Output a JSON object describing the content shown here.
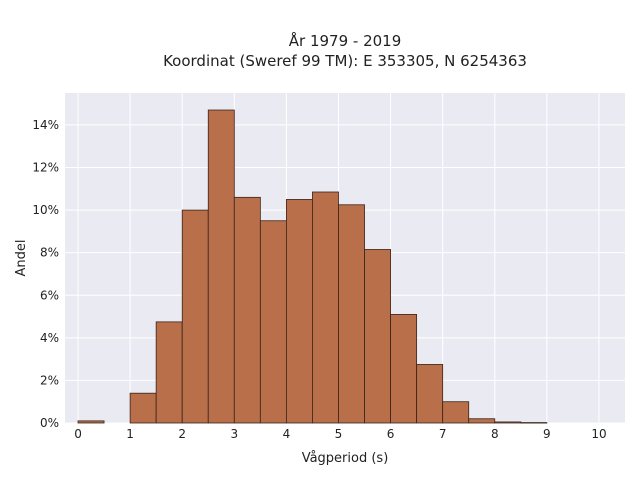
{
  "chart_data": {
    "type": "bar",
    "title_lines": [
      "År 1979 - 2019",
      "Koordinat (Sweref 99 TM): E 353305, N 6254363"
    ],
    "xlabel": "Vågperiod (s)",
    "ylabel": "Andel",
    "xlim": [
      -0.25,
      10.5
    ],
    "ylim": [
      0,
      15.5
    ],
    "x_ticks": [
      0,
      1,
      2,
      3,
      4,
      5,
      6,
      7,
      8,
      9,
      10
    ],
    "y_ticks": [
      0,
      2,
      4,
      6,
      8,
      10,
      12,
      14
    ],
    "y_tick_labels": [
      "0%",
      "2%",
      "4%",
      "6%",
      "8%",
      "10%",
      "12%",
      "14%"
    ],
    "bin_width": 0.5,
    "bins": [
      {
        "x_start": 0.0,
        "value": 0.1
      },
      {
        "x_start": 0.5,
        "value": 0.0
      },
      {
        "x_start": 1.0,
        "value": 1.4
      },
      {
        "x_start": 1.5,
        "value": 4.75
      },
      {
        "x_start": 2.0,
        "value": 10.0
      },
      {
        "x_start": 2.5,
        "value": 14.7
      },
      {
        "x_start": 3.0,
        "value": 10.6
      },
      {
        "x_start": 3.5,
        "value": 9.5
      },
      {
        "x_start": 4.0,
        "value": 10.5
      },
      {
        "x_start": 4.5,
        "value": 10.85
      },
      {
        "x_start": 5.0,
        "value": 10.25
      },
      {
        "x_start": 5.5,
        "value": 8.15
      },
      {
        "x_start": 6.0,
        "value": 5.1
      },
      {
        "x_start": 6.5,
        "value": 2.75
      },
      {
        "x_start": 7.0,
        "value": 1.0
      },
      {
        "x_start": 7.5,
        "value": 0.2
      },
      {
        "x_start": 8.0,
        "value": 0.05
      },
      {
        "x_start": 8.5,
        "value": 0.02
      }
    ],
    "bar_color": "#b86f4a",
    "bar_edge_color": "#3a2418",
    "plot_background": "#eaeaf2",
    "grid_color": "#ffffff",
    "grid": true
  }
}
